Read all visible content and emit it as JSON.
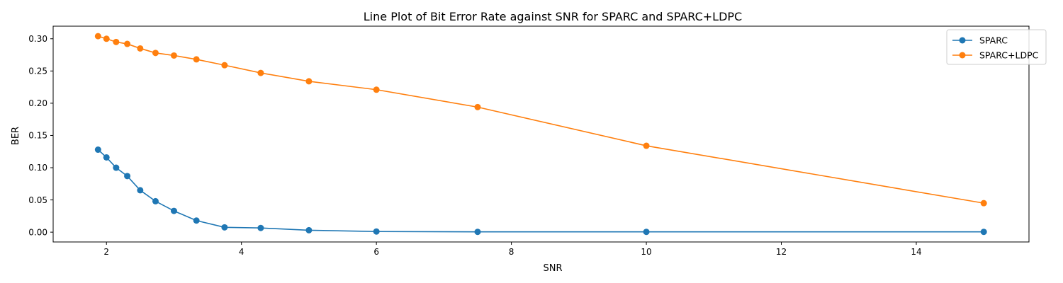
{
  "chart_data": {
    "type": "line",
    "title": "Line Plot of Bit Error Rate against SNR for SPARC and SPARC+LDPC",
    "xlabel": "SNR",
    "ylabel": "BER",
    "xlim": [
      1.21,
      15.67
    ],
    "ylim": [
      -0.0152,
      0.3195
    ],
    "xticks": [
      2,
      4,
      6,
      8,
      10,
      12,
      14
    ],
    "xtick_labels": [
      "2",
      "4",
      "6",
      "8",
      "10",
      "12",
      "14"
    ],
    "yticks": [
      0.0,
      0.05,
      0.1,
      0.15,
      0.2,
      0.25,
      0.3
    ],
    "ytick_labels": [
      "0.00",
      "0.05",
      "0.10",
      "0.15",
      "0.20",
      "0.25",
      "0.30"
    ],
    "grid": false,
    "legend_position": "top-right",
    "x": [
      1.875,
      2.0,
      2.143,
      2.308,
      2.5,
      2.727,
      3.0,
      3.333,
      3.75,
      4.286,
      5.0,
      6.0,
      7.5,
      10.0,
      15.0
    ],
    "series": [
      {
        "name": "SPARC",
        "color": "#1f77b4",
        "values": [
          0.128,
          0.116,
          0.1,
          0.087,
          0.065,
          0.048,
          0.033,
          0.018,
          0.0075,
          0.0065,
          0.003,
          0.001,
          0.0005,
          0.0005,
          0.0005
        ]
      },
      {
        "name": "SPARC+LDPC",
        "color": "#ff7f0e",
        "values": [
          0.304,
          0.3,
          0.295,
          0.292,
          0.285,
          0.278,
          0.274,
          0.268,
          0.259,
          0.247,
          0.234,
          0.221,
          0.194,
          0.134,
          0.045
        ]
      }
    ]
  }
}
